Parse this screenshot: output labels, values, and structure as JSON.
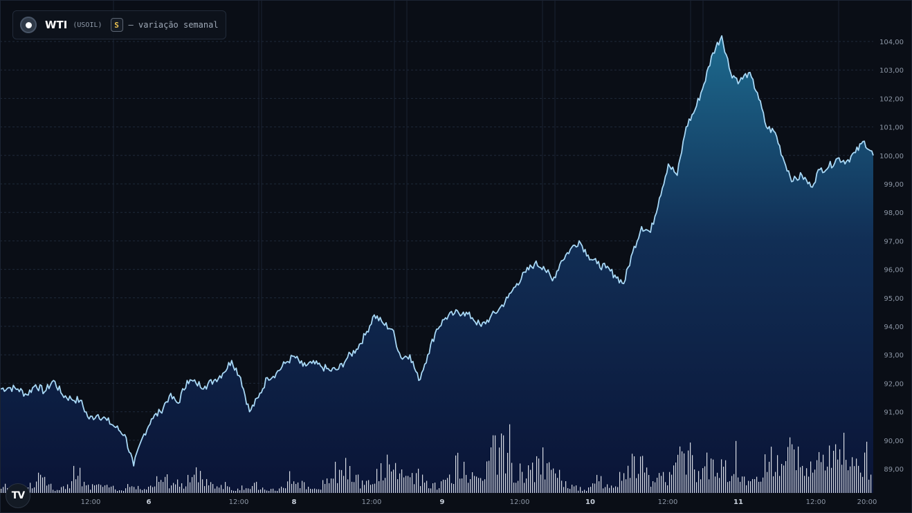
{
  "header": {
    "symbol": "WTI",
    "ticker": "(USOIL)",
    "badge": "S",
    "subtitle": "— variação semanal"
  },
  "colors": {
    "background": "#0a0e16",
    "line": "#a8d8f6",
    "area_top": "#1d6a8e",
    "area_bottom": "#0a1436",
    "volume": "#eef2f7",
    "badge_text": "#f0c552"
  },
  "chart_data": {
    "type": "area",
    "title": "WTI (USOIL)",
    "subtitle": "— variação semanal",
    "y_ticks": [
      "89,00",
      "90,00",
      "91,00",
      "92,00",
      "93,00",
      "94,00",
      "95,00",
      "96,00",
      "97,00",
      "98,00",
      "99,00",
      "100,00",
      "101,00",
      "102,00",
      "103,00",
      "104,00"
    ],
    "ylim": [
      88.3,
      104.7
    ],
    "x_ticks": [
      {
        "label": "12:00",
        "bold": false
      },
      {
        "label": "6",
        "bold": true
      },
      {
        "label": "12:00",
        "bold": false
      },
      {
        "label": "8",
        "bold": true
      },
      {
        "label": "12:00",
        "bold": false
      },
      {
        "label": "9",
        "bold": true
      },
      {
        "label": "12:00",
        "bold": false
      },
      {
        "label": "10",
        "bold": true
      },
      {
        "label": "12:00",
        "bold": false
      },
      {
        "label": "11",
        "bold": true
      },
      {
        "label": "12:00",
        "bold": false
      },
      {
        "label": "20:00",
        "bold": false
      }
    ],
    "series": [
      {
        "values": [
          91.8,
          91.85,
          91.8,
          91.6,
          91.95,
          91.7,
          92.1,
          91.6,
          91.45,
          91.4,
          90.75,
          90.9,
          90.7,
          90.45,
          90.2,
          89.1,
          90.1,
          90.75,
          91.0,
          91.55,
          91.3,
          92.1,
          92.0,
          91.9,
          92.1,
          92.35,
          92.8,
          92.2,
          91.0,
          91.5,
          92.2,
          92.35,
          92.7,
          92.95,
          92.6,
          92.7,
          92.6,
          92.45,
          92.5,
          92.9,
          93.2,
          93.7,
          94.4,
          94.1,
          93.9,
          92.9,
          93.0,
          92.1,
          93.0,
          93.9,
          94.3,
          94.45,
          94.5,
          94.3,
          94.0,
          94.3,
          94.6,
          95.0,
          95.5,
          95.9,
          96.2,
          96.1,
          95.6,
          96.3,
          96.7,
          97.0,
          96.5,
          96.2,
          96.05,
          95.8,
          95.5,
          96.6,
          97.5,
          97.3,
          98.5,
          99.7,
          99.3,
          101.0,
          101.6,
          102.5,
          103.6,
          104.2,
          102.9,
          102.6,
          102.9,
          102.2,
          101.0,
          100.8,
          99.8,
          99.1,
          99.3,
          98.9,
          99.5,
          99.6,
          99.9,
          99.8,
          100.1,
          100.5,
          100.0
        ]
      }
    ],
    "volume": [
      7,
      12,
      5,
      5,
      6,
      15,
      28,
      12,
      7,
      8,
      10,
      44,
      22,
      8,
      12,
      14,
      9,
      7,
      5,
      6,
      12,
      6,
      14,
      20,
      24,
      18,
      16,
      14,
      22,
      30,
      18,
      13,
      9,
      8,
      7,
      6,
      9,
      8,
      14,
      6,
      5,
      4,
      18,
      26,
      14,
      12,
      8,
      7,
      16,
      30,
      40,
      44,
      26,
      20,
      12,
      18,
      28,
      40,
      46,
      34,
      30,
      22,
      26,
      16,
      12,
      10,
      18,
      22,
      56,
      34,
      26,
      24,
      32,
      62,
      80,
      48,
      40,
      38,
      36,
      42,
      54,
      40,
      34,
      22,
      14,
      10,
      8,
      4,
      22,
      18,
      12,
      10,
      24,
      34,
      48,
      40,
      22,
      20,
      24,
      30,
      42,
      54,
      70,
      36,
      26,
      52,
      30,
      40,
      44,
      36,
      24,
      18,
      30,
      38,
      52,
      50,
      42,
      60,
      54,
      30,
      38,
      46,
      58,
      72,
      84,
      66,
      44,
      52,
      46,
      34
    ]
  },
  "brand": {
    "logo_text": "TV"
  }
}
